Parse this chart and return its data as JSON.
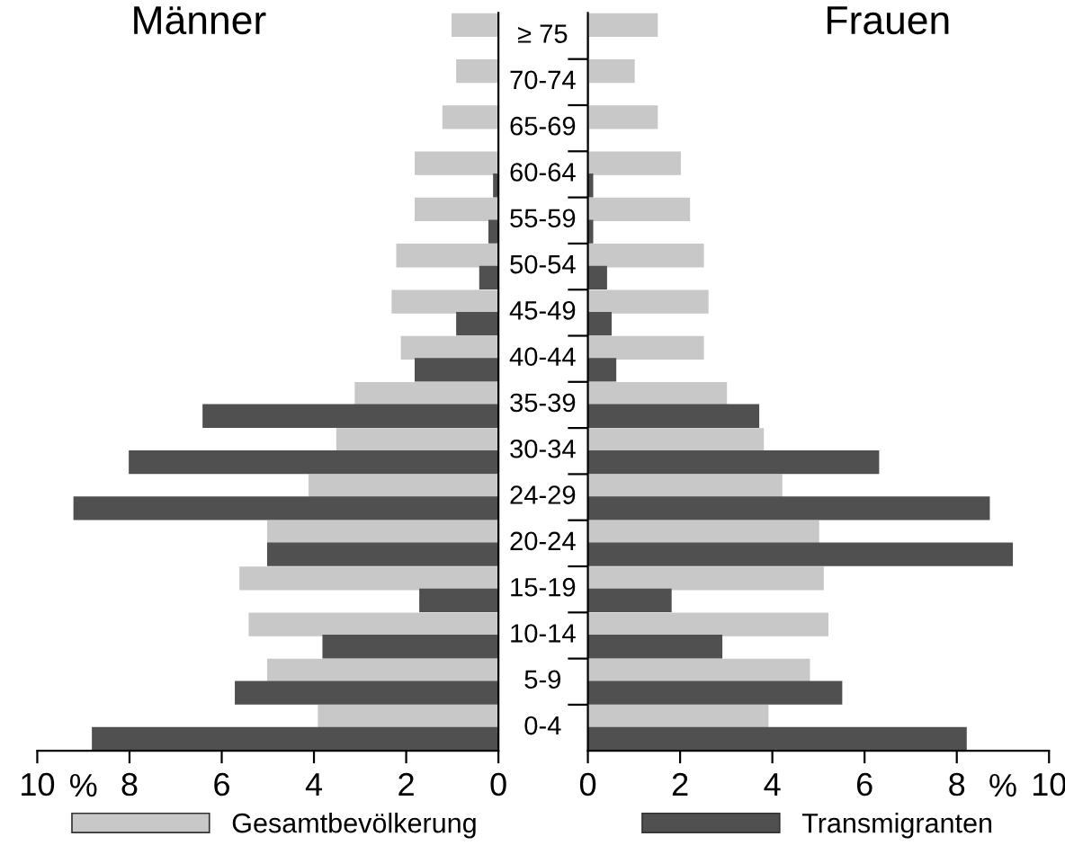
{
  "chart_data": [
    {
      "type": "bar",
      "orientation": "horizontal",
      "title": "Männer",
      "xlabel": "%",
      "legend": "bottom",
      "categories": [
        "≥ 75",
        "70-74",
        "65-69",
        "60-64",
        "55-59",
        "50-54",
        "45-49",
        "40-44",
        "35-39",
        "30-34",
        "24-29",
        "20-24",
        "15-19",
        "10-14",
        "5-9",
        "0-4"
      ],
      "series": [
        {
          "name": "Gesamtbevölkerung",
          "color": "#c8c8c8",
          "values": [
            1.0,
            0.9,
            1.2,
            1.8,
            1.8,
            2.2,
            2.3,
            2.1,
            3.1,
            3.5,
            4.1,
            5.0,
            5.6,
            5.4,
            5.0,
            3.9
          ]
        },
        {
          "name": "Transmigranten",
          "color": "#505050",
          "values": [
            0,
            0,
            0,
            0.1,
            0.2,
            0.4,
            0.9,
            1.8,
            6.4,
            8.0,
            9.2,
            5.0,
            1.7,
            3.8,
            5.7,
            8.8
          ]
        }
      ],
      "xlim": [
        10,
        0
      ],
      "xticks": [
        10,
        8,
        6,
        4,
        2,
        0
      ],
      "tick_labels": "x"
    },
    {
      "type": "bar",
      "orientation": "horizontal",
      "title": "Frauen",
      "xlabel": "%",
      "legend": "bottom",
      "categories": [
        "≥ 75",
        "70-74",
        "65-69",
        "60-64",
        "55-59",
        "50-54",
        "45-49",
        "40-44",
        "35-39",
        "30-34",
        "24-29",
        "20-24",
        "15-19",
        "10-14",
        "5-9",
        "0-4"
      ],
      "series": [
        {
          "name": "Gesamtbevölkerung",
          "color": "#c8c8c8",
          "values": [
            1.5,
            1.0,
            1.5,
            2.0,
            2.2,
            2.5,
            2.6,
            2.5,
            3.0,
            3.8,
            4.2,
            5.0,
            5.1,
            5.2,
            4.8,
            3.9
          ]
        },
        {
          "name": "Transmigranten",
          "color": "#505050",
          "values": [
            0,
            0,
            0,
            0.1,
            0.1,
            0.4,
            0.5,
            0.6,
            3.7,
            6.3,
            8.7,
            9.2,
            1.8,
            2.9,
            5.5,
            8.2
          ]
        }
      ],
      "xlim": [
        0,
        10
      ],
      "xticks": [
        0,
        2,
        4,
        6,
        8,
        10
      ]
    }
  ]
}
